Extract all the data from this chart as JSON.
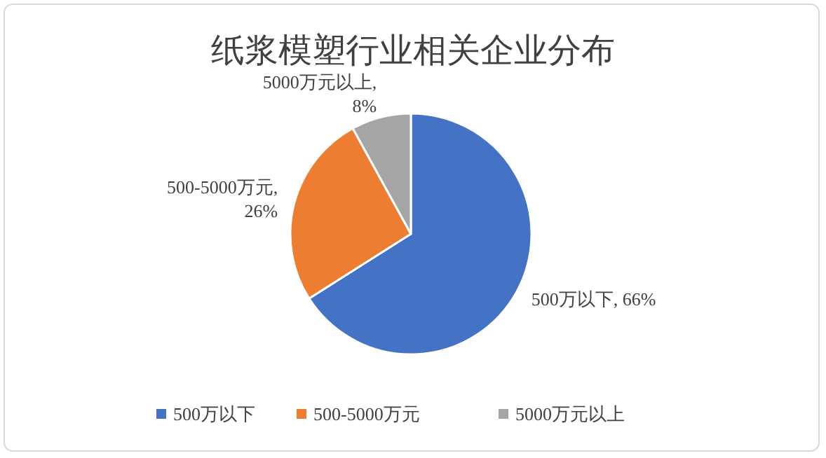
{
  "chart_data": {
    "type": "pie",
    "title": "纸浆模塑行业相关企业分布",
    "categories": [
      "500万以下",
      "500-5000万元",
      "5000万元以上"
    ],
    "values": [
      66,
      26,
      8
    ],
    "colors": [
      "#4472c4",
      "#ed7d31",
      "#a5a5a5"
    ],
    "value_labels": [
      "500万以下, 66%",
      "500-5000万元,\n26%",
      "5000万元以上,\n8%"
    ],
    "legend": "bottom"
  }
}
